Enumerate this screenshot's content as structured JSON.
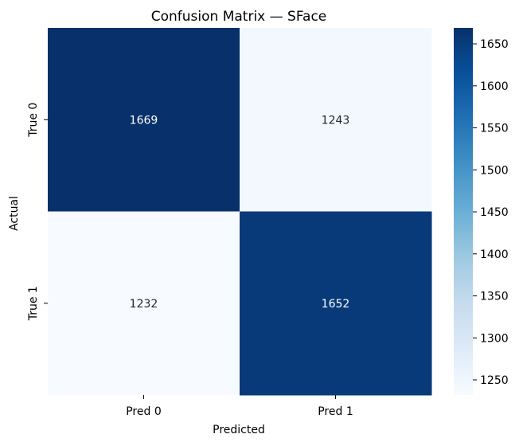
{
  "chart_data": {
    "type": "heatmap",
    "title": "Confusion Matrix — SFace",
    "xlabel": "Predicted",
    "ylabel": "Actual",
    "x_categories": [
      "Pred 0",
      "Pred 1"
    ],
    "y_categories": [
      "True 0",
      "True 1"
    ],
    "values": [
      [
        1669,
        1243
      ],
      [
        1232,
        1652
      ]
    ],
    "colormap": "Blues",
    "colorbar": {
      "range": [
        1232,
        1669
      ],
      "ticks": [
        1250,
        1300,
        1350,
        1400,
        1450,
        1500,
        1550,
        1600,
        1650
      ]
    },
    "annotation_color_dark_cell": "#ffffff",
    "annotation_color_light_cell": "#262626"
  }
}
